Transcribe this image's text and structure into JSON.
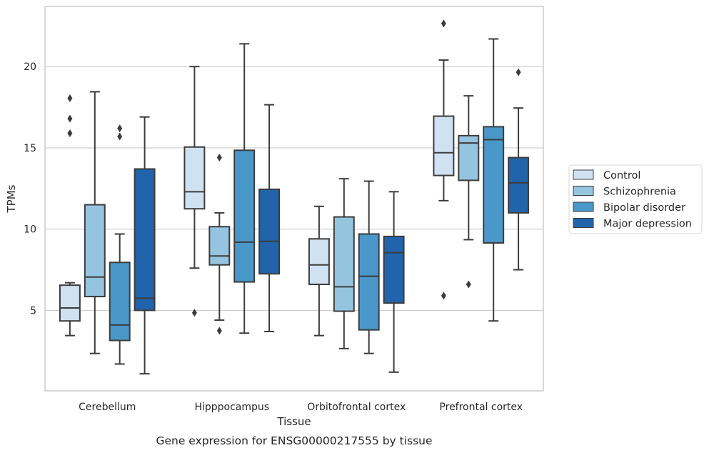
{
  "chart_data": {
    "type": "box",
    "caption": "Gene expression for ENSG00000217555 by tissue",
    "xlabel": "Tissue",
    "ylabel": "TPMs",
    "ylim": [
      0.05,
      23.7
    ],
    "yticks": [
      5,
      10,
      15,
      20
    ],
    "grid": "horizontal",
    "legend_position": "right",
    "categories": [
      "Cerebellum",
      "Hipppocampus",
      "Orbitofrontal cortex",
      "Prefrontal cortex"
    ],
    "series": [
      {
        "name": "Control",
        "color": "#d0e1f2",
        "boxes": [
          {
            "whislo": 3.45,
            "q1": 4.35,
            "med": 5.15,
            "q3": 6.55,
            "whishi": 6.7,
            "fliers": [
              15.9,
              16.8,
              18.05
            ]
          },
          {
            "whislo": 7.6,
            "q1": 11.25,
            "med": 12.3,
            "q3": 15.05,
            "whishi": 20.0,
            "fliers": [
              4.85
            ]
          },
          {
            "whislo": 3.45,
            "q1": 6.6,
            "med": 7.8,
            "q3": 9.4,
            "whishi": 11.4,
            "fliers": []
          },
          {
            "whislo": 11.75,
            "q1": 13.3,
            "med": 14.7,
            "q3": 16.95,
            "whishi": 20.4,
            "fliers": [
              5.9,
              22.65
            ]
          }
        ]
      },
      {
        "name": "Schizophrenia",
        "color": "#94c4df",
        "boxes": [
          {
            "whislo": 2.35,
            "q1": 5.85,
            "med": 7.05,
            "q3": 11.5,
            "whishi": 18.45,
            "fliers": []
          },
          {
            "whislo": 4.4,
            "q1": 7.8,
            "med": 8.35,
            "q3": 10.15,
            "whishi": 11.0,
            "fliers": [
              3.75,
              14.4
            ]
          },
          {
            "whislo": 2.65,
            "q1": 4.95,
            "med": 6.45,
            "q3": 10.75,
            "whishi": 13.1,
            "fliers": []
          },
          {
            "whislo": 9.35,
            "q1": 13.0,
            "med": 15.3,
            "q3": 15.75,
            "whishi": 18.2,
            "fliers": [
              6.6
            ]
          }
        ]
      },
      {
        "name": "Bipolar disorder",
        "color": "#4a98c9",
        "boxes": [
          {
            "whislo": 1.7,
            "q1": 3.15,
            "med": 4.1,
            "q3": 7.95,
            "whishi": 9.7,
            "fliers": [
              15.7,
              16.2
            ]
          },
          {
            "whislo": 3.6,
            "q1": 6.75,
            "med": 9.2,
            "q3": 14.85,
            "whishi": 21.4,
            "fliers": []
          },
          {
            "whislo": 2.35,
            "q1": 3.8,
            "med": 7.1,
            "q3": 9.7,
            "whishi": 12.95,
            "fliers": []
          },
          {
            "whislo": 4.35,
            "q1": 9.15,
            "med": 15.5,
            "q3": 16.3,
            "whishi": 21.7,
            "fliers": []
          }
        ]
      },
      {
        "name": "Major depression",
        "color": "#2164ab",
        "boxes": [
          {
            "whislo": 1.1,
            "q1": 5.0,
            "med": 5.75,
            "q3": 13.7,
            "whishi": 16.9,
            "fliers": []
          },
          {
            "whislo": 3.7,
            "q1": 7.25,
            "med": 9.25,
            "q3": 12.45,
            "whishi": 17.65,
            "fliers": []
          },
          {
            "whislo": 1.2,
            "q1": 5.45,
            "med": 8.55,
            "q3": 9.55,
            "whishi": 12.3,
            "fliers": []
          },
          {
            "whislo": 7.5,
            "q1": 11.0,
            "med": 12.85,
            "q3": 14.4,
            "whishi": 17.45,
            "fliers": [
              19.65
            ]
          }
        ]
      }
    ]
  }
}
